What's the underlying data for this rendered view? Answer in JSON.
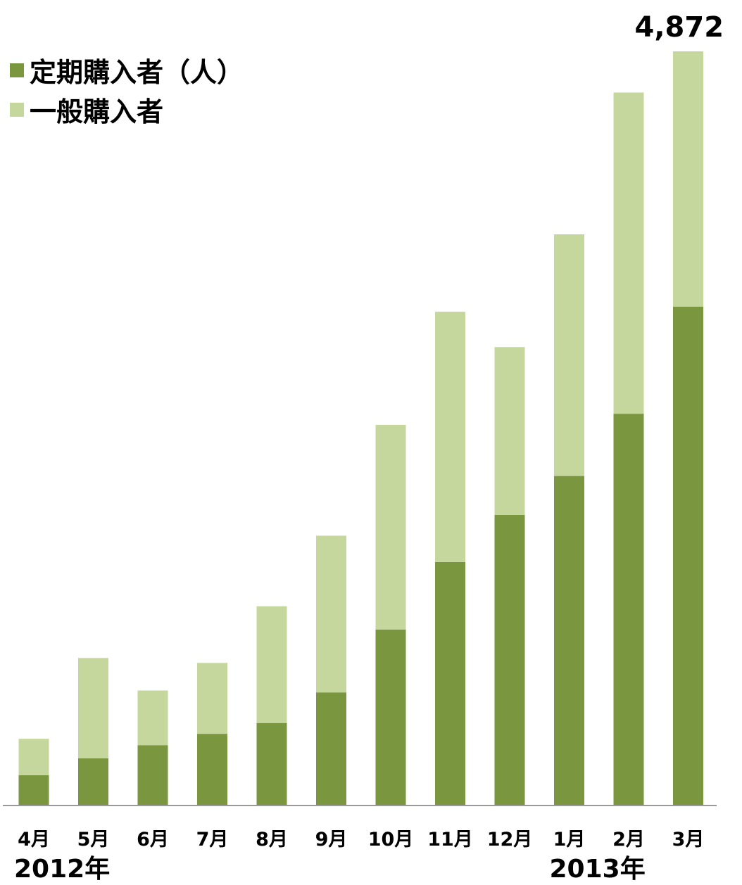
{
  "chart_data": {
    "type": "bar",
    "stacked": true,
    "categories": [
      "4月",
      "5月",
      "6月",
      "7月",
      "8月",
      "9月",
      "10月",
      "11月",
      "12月",
      "1月",
      "2月",
      "3月"
    ],
    "series": [
      {
        "name": "定期購入者（人）",
        "color": "#7a973f",
        "values": [
          196,
          305,
          390,
          463,
          533,
          731,
          1137,
          1573,
          1877,
          2129,
          2531,
          3223
        ]
      },
      {
        "name": "一般購入者",
        "color": "#c5d79c",
        "values": [
          235,
          648,
          353,
          458,
          754,
          1012,
          1322,
          1617,
          1085,
          1561,
          2075,
          1649
        ]
      }
    ],
    "totals_label": {
      "category": "3月",
      "text": "4,872"
    },
    "year_labels": [
      {
        "text": "2012年",
        "category": "4月"
      },
      {
        "text": "2013年",
        "category": "1月"
      }
    ],
    "ylim": [
      0,
      4872
    ],
    "grid": false,
    "legend_position": "top-left"
  }
}
